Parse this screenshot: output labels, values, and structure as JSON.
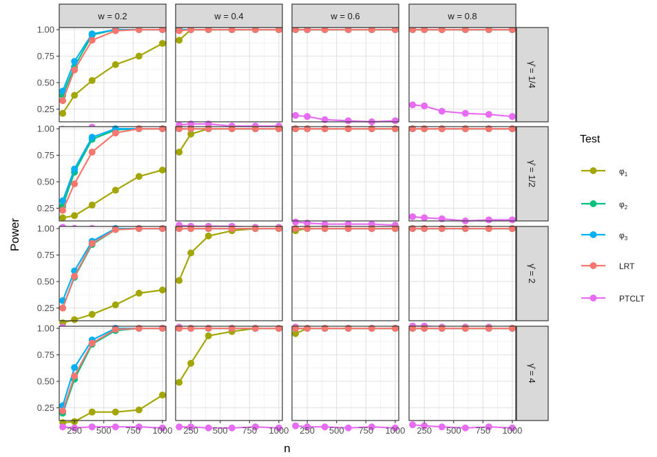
{
  "chart_data": {
    "type": "line",
    "xlabel": "n",
    "ylabel": "Power",
    "x": [
      150,
      250,
      400,
      600,
      800,
      1000
    ],
    "xticks": [
      250,
      500,
      750,
      1000
    ],
    "xtick_labels": [
      "250",
      "500",
      "750",
      "1000"
    ],
    "ylim": [
      0.13,
      1.02
    ],
    "yticks": [
      0.25,
      0.5,
      0.75,
      1.0
    ],
    "ytick_labels": [
      "0.25",
      "0.50",
      "0.75",
      "1.00"
    ],
    "grid": true,
    "legend": {
      "title": "Test",
      "position": "right"
    },
    "series_defs": [
      {
        "name": "φ1",
        "base": "φ",
        "sub": "1",
        "color": "#A3A500"
      },
      {
        "name": "φ2",
        "base": "φ",
        "sub": "2",
        "color": "#00BF7D"
      },
      {
        "name": "φ3",
        "base": "φ",
        "sub": "3",
        "color": "#00B0F6"
      },
      {
        "name": "LRT",
        "color": "#F8766D"
      },
      {
        "name": "PTCLT",
        "color": "#E76BF3"
      }
    ],
    "col_labels": [
      "w = 0.2",
      "w = 0.4",
      "w = 0.6",
      "w = 0.8"
    ],
    "row_labels": [
      "γ̂ = 1/4",
      "γ̂ = 1/2",
      "γ̂ = 2",
      "γ̂ = 4"
    ],
    "panels": [
      [
        {
          "φ1": [
            0.21,
            0.38,
            0.52,
            0.67,
            0.75,
            0.87
          ],
          "φ2": [
            0.38,
            0.65,
            0.95,
            1.0,
            1.0,
            1.0
          ],
          "φ3": [
            0.42,
            0.7,
            0.96,
            1.0,
            1.0,
            1.0
          ],
          "LRT": [
            0.33,
            0.62,
            0.9,
            0.99,
            1.0,
            1.0
          ],
          "PTCLT": [
            0.06,
            0.05,
            0.08,
            0.06,
            0.05,
            0.06
          ]
        },
        {
          "φ1": [
            0.9,
            1.0,
            1.0,
            1.0,
            1.0,
            1.0
          ],
          "φ2": [
            1.0,
            1.0,
            1.0,
            1.0,
            1.0,
            1.0
          ],
          "φ3": [
            1.0,
            1.0,
            1.0,
            1.0,
            1.0,
            1.0
          ],
          "LRT": [
            0.99,
            1.0,
            1.0,
            1.0,
            1.0,
            1.0
          ],
          "PTCLT": [
            0.1,
            0.11,
            0.11,
            0.09,
            0.09,
            0.09
          ]
        },
        {
          "φ1": [
            1.0,
            1.0,
            1.0,
            1.0,
            1.0,
            1.0
          ],
          "φ2": [
            1.0,
            1.0,
            1.0,
            1.0,
            1.0,
            1.0
          ],
          "φ3": [
            1.0,
            1.0,
            1.0,
            1.0,
            1.0,
            1.0
          ],
          "LRT": [
            1.0,
            1.0,
            1.0,
            1.0,
            1.0,
            1.0
          ],
          "PTCLT": [
            0.19,
            0.18,
            0.15,
            0.14,
            0.13,
            0.14
          ]
        },
        {
          "φ1": [
            1.0,
            1.0,
            1.0,
            1.0,
            1.0,
            1.0
          ],
          "φ2": [
            1.0,
            1.0,
            1.0,
            1.0,
            1.0,
            1.0
          ],
          "φ3": [
            1.0,
            1.0,
            1.0,
            1.0,
            1.0,
            1.0
          ],
          "LRT": [
            1.0,
            1.0,
            1.0,
            1.0,
            1.0,
            1.0
          ],
          "PTCLT": [
            0.29,
            0.28,
            0.23,
            0.21,
            0.2,
            0.18
          ]
        }
      ],
      [
        {
          "φ1": [
            0.16,
            0.18,
            0.28,
            0.42,
            0.55,
            0.61
          ],
          "φ2": [
            0.27,
            0.59,
            0.9,
            0.99,
            1.0,
            1.0
          ],
          "φ3": [
            0.32,
            0.62,
            0.92,
            1.0,
            1.0,
            1.0
          ],
          "LRT": [
            0.23,
            0.48,
            0.78,
            0.96,
            1.0,
            1.0
          ],
          "PTCLT": [
            0.07,
            0.06,
            0.06,
            0.06,
            0.06,
            0.05
          ]
        },
        {
          "φ1": [
            0.78,
            0.95,
            1.0,
            1.0,
            1.0,
            1.0
          ],
          "φ2": [
            1.0,
            1.0,
            1.0,
            1.0,
            1.0,
            1.0
          ],
          "φ3": [
            1.0,
            1.0,
            1.0,
            1.0,
            1.0,
            1.0
          ],
          "LRT": [
            1.0,
            1.0,
            1.0,
            1.0,
            1.0,
            1.0
          ],
          "PTCLT": [
            0.09,
            0.08,
            0.08,
            0.08,
            0.07,
            0.07
          ]
        },
        {
          "φ1": [
            1.0,
            1.0,
            1.0,
            1.0,
            1.0,
            1.0
          ],
          "φ2": [
            1.0,
            1.0,
            1.0,
            1.0,
            1.0,
            1.0
          ],
          "φ3": [
            1.0,
            1.0,
            1.0,
            1.0,
            1.0,
            1.0
          ],
          "LRT": [
            1.0,
            1.0,
            1.0,
            1.0,
            1.0,
            1.0
          ],
          "PTCLT": [
            0.12,
            0.11,
            0.1,
            0.1,
            0.1,
            0.09
          ]
        },
        {
          "φ1": [
            1.0,
            1.0,
            1.0,
            1.0,
            1.0,
            1.0
          ],
          "φ2": [
            1.0,
            1.0,
            1.0,
            1.0,
            1.0,
            1.0
          ],
          "φ3": [
            1.0,
            1.0,
            1.0,
            1.0,
            1.0,
            1.0
          ],
          "LRT": [
            1.0,
            1.0,
            1.0,
            1.0,
            1.0,
            1.0
          ],
          "PTCLT": [
            0.17,
            0.16,
            0.15,
            0.13,
            0.14,
            0.14
          ]
        }
      ],
      [
        {
          "φ1": [
            0.11,
            0.14,
            0.19,
            0.28,
            0.39,
            0.42
          ],
          "φ2": [
            0.25,
            0.54,
            0.85,
            0.99,
            1.0,
            1.0
          ],
          "φ3": [
            0.32,
            0.6,
            0.88,
            1.0,
            1.0,
            1.0
          ],
          "LRT": [
            0.25,
            0.55,
            0.86,
            0.99,
            1.0,
            1.0
          ],
          "PTCLT": [
            0.07,
            0.05,
            0.05,
            0.06,
            0.06,
            0.06
          ]
        },
        {
          "φ1": [
            0.51,
            0.77,
            0.93,
            0.98,
            1.0,
            1.0
          ],
          "φ2": [
            1.0,
            1.0,
            1.0,
            1.0,
            1.0,
            1.0
          ],
          "φ3": [
            1.0,
            1.0,
            1.0,
            1.0,
            1.0,
            1.0
          ],
          "LRT": [
            1.0,
            1.0,
            1.0,
            1.0,
            1.0,
            1.0
          ],
          "PTCLT": [
            0.07,
            0.06,
            0.06,
            0.06,
            0.06,
            0.05
          ]
        },
        {
          "φ1": [
            0.98,
            1.0,
            1.0,
            1.0,
            1.0,
            1.0
          ],
          "φ2": [
            1.0,
            1.0,
            1.0,
            1.0,
            1.0,
            1.0
          ],
          "φ3": [
            1.0,
            1.0,
            1.0,
            1.0,
            1.0,
            1.0
          ],
          "LRT": [
            1.0,
            1.0,
            1.0,
            1.0,
            1.0,
            1.0
          ],
          "PTCLT": [
            0.07,
            0.06,
            0.06,
            0.06,
            0.06,
            0.06
          ]
        },
        {
          "φ1": [
            1.0,
            1.0,
            1.0,
            1.0,
            1.0,
            1.0
          ],
          "φ2": [
            1.0,
            1.0,
            1.0,
            1.0,
            1.0,
            1.0
          ],
          "φ3": [
            1.0,
            1.0,
            1.0,
            1.0,
            1.0,
            1.0
          ],
          "LRT": [
            1.0,
            1.0,
            1.0,
            1.0,
            1.0,
            1.0
          ],
          "PTCLT": [
            0.08,
            0.08,
            0.07,
            0.07,
            0.07,
            0.06
          ]
        }
      ],
      [
        {
          "φ1": [
            0.11,
            0.12,
            0.21,
            0.21,
            0.23,
            0.37
          ],
          "φ2": [
            0.2,
            0.52,
            0.85,
            0.98,
            1.0,
            1.0
          ],
          "φ3": [
            0.27,
            0.63,
            0.89,
            1.0,
            1.0,
            1.0
          ],
          "LRT": [
            0.22,
            0.55,
            0.86,
            0.99,
            1.0,
            1.0
          ],
          "PTCLT": [
            0.07,
            0.06,
            0.07,
            0.07,
            0.07,
            0.06
          ]
        },
        {
          "φ1": [
            0.49,
            0.67,
            0.93,
            0.97,
            1.0,
            1.0
          ],
          "φ2": [
            1.0,
            1.0,
            1.0,
            1.0,
            1.0,
            1.0
          ],
          "φ3": [
            1.0,
            1.0,
            1.0,
            1.0,
            1.0,
            1.0
          ],
          "LRT": [
            1.0,
            1.0,
            1.0,
            1.0,
            1.0,
            1.0
          ],
          "PTCLT": [
            0.07,
            0.07,
            0.06,
            0.06,
            0.07,
            0.06
          ]
        },
        {
          "φ1": [
            0.95,
            1.0,
            1.0,
            1.0,
            1.0,
            1.0
          ],
          "φ2": [
            1.0,
            1.0,
            1.0,
            1.0,
            1.0,
            1.0
          ],
          "φ3": [
            1.0,
            1.0,
            1.0,
            1.0,
            1.0,
            1.0
          ],
          "LRT": [
            1.0,
            1.0,
            1.0,
            1.0,
            1.0,
            1.0
          ],
          "PTCLT": [
            0.08,
            0.07,
            0.07,
            0.06,
            0.07,
            0.06
          ]
        },
        {
          "φ1": [
            1.0,
            1.0,
            1.0,
            1.0,
            1.0,
            1.0
          ],
          "φ2": [
            1.0,
            1.0,
            1.0,
            1.0,
            1.0,
            1.0
          ],
          "φ3": [
            1.0,
            1.0,
            1.0,
            1.0,
            1.0,
            1.0
          ],
          "LRT": [
            1.0,
            1.0,
            1.0,
            1.0,
            1.0,
            1.0
          ],
          "PTCLT": [
            0.09,
            0.08,
            0.07,
            0.06,
            0.07,
            0.06
          ]
        }
      ]
    ]
  }
}
